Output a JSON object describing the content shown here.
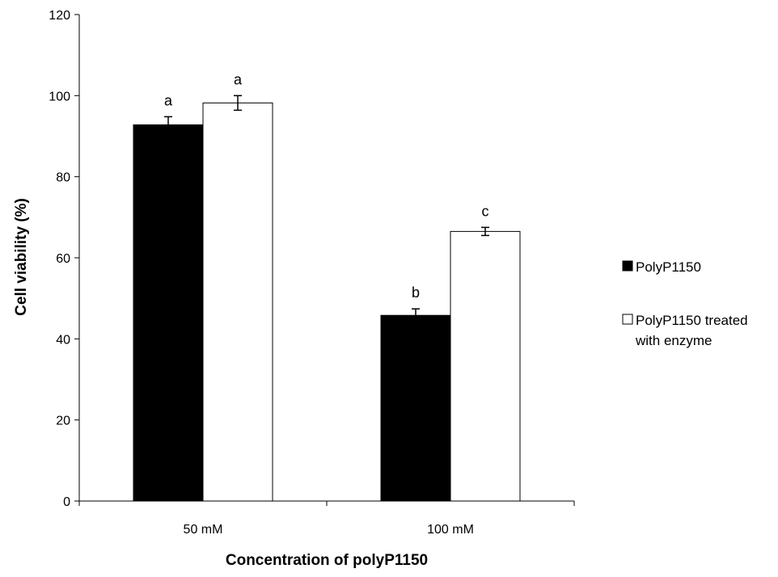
{
  "chart_data": {
    "type": "bar",
    "title": "",
    "xlabel": "Concentration of polyP1150",
    "ylabel": "Cell viability (%)",
    "ylim": [
      0,
      120
    ],
    "yticks": [
      0,
      20,
      40,
      60,
      80,
      100,
      120
    ],
    "ytick_labels": [
      "0",
      "20",
      "40",
      "60",
      "80",
      "100",
      "120"
    ],
    "categories": [
      "50 mM",
      "100 mM"
    ],
    "grid": false,
    "legend_position": "right",
    "series": [
      {
        "name": "PolyP1150",
        "legend_lines": [
          "PolyP1150"
        ],
        "color": "#000000",
        "values": [
          92.8,
          45.8
        ],
        "errors": [
          2.0,
          1.6
        ],
        "significance": [
          "a",
          "b"
        ]
      },
      {
        "name": "PolyP1150 treated with enzyme",
        "legend_lines": [
          "PolyP1150 treated",
          "with enzyme"
        ],
        "color": "#ffffff",
        "values": [
          98.2,
          66.5
        ],
        "errors": [
          1.8,
          1.0
        ],
        "significance": [
          "a",
          "c"
        ]
      }
    ]
  }
}
